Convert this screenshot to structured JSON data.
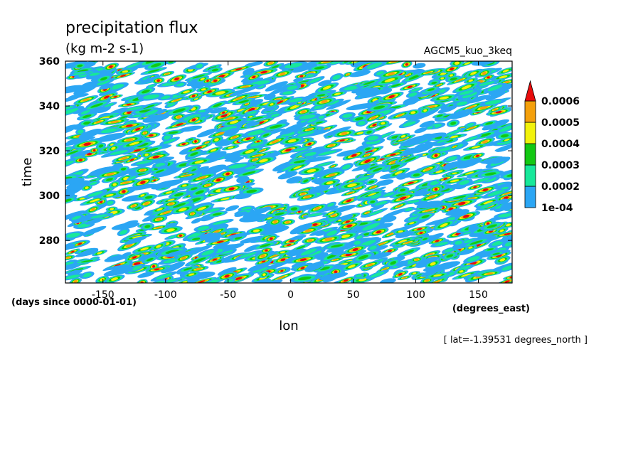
{
  "chart_data": {
    "type": "heatmap",
    "title": "precipitation flux",
    "units": "(kg m-2 s-1)",
    "dataset": "AGCM5_kuo_3keq",
    "xlabel": "lon",
    "x_units": "(degrees_east)",
    "ylabel": "time",
    "y_units": "(days since 0000-01-01)",
    "slice_note": "[ lat=-1.39531 degrees_north ]",
    "xlim": [
      -180,
      177
    ],
    "ylim": [
      261,
      360
    ],
    "x_ticks": [
      -150,
      -100,
      -50,
      0,
      50,
      100,
      150
    ],
    "x_tick_labels": [
      "-150",
      "-100",
      "-50",
      "0",
      "50",
      "100",
      "150"
    ],
    "y_ticks": [
      280,
      300,
      320,
      340,
      360
    ],
    "y_tick_labels": [
      "280",
      "300",
      "320",
      "340",
      "360"
    ],
    "colorbar": {
      "levels": [
        0.0001,
        0.0002,
        0.0003,
        0.0004,
        0.0005,
        0.0006
      ],
      "labels": [
        "1e-04",
        "0.0002",
        "0.0003",
        "0.0004",
        "0.0005",
        "0.0006"
      ],
      "colors": [
        "#2ba6f4",
        "#17e89a",
        "#13c813",
        "#f2f20b",
        "#f4a00b",
        "#e80c0c"
      ],
      "extend": "max"
    },
    "field_description": "Hovmoller diagram of precipitation flux along the equator; westward-tilted streaks of rain events at all longitudes, relatively dry gaps near lon -20 to 0 around days 295-315 and near lon -160 to -140 around days 275-285.",
    "field_approximation": {
      "dry_zones": [
        {
          "lon": -15,
          "time": 305,
          "lon_radius": 22,
          "time_radius": 11
        },
        {
          "lon": -150,
          "time": 280,
          "lon_radius": 18,
          "time_radius": 7
        },
        {
          "lon": -40,
          "time": 287,
          "lon_radius": 18,
          "time_radius": 6
        }
      ]
    }
  }
}
